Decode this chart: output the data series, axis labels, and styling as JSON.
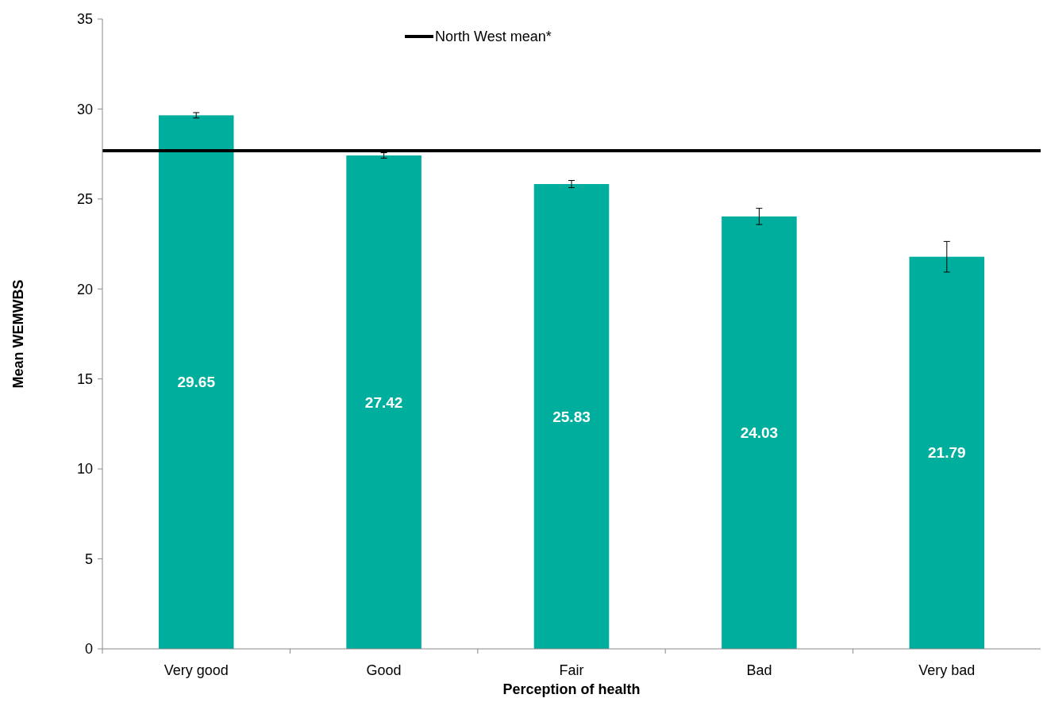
{
  "chart_data": {
    "type": "bar",
    "xlabel": "Perception of health",
    "ylabel": "Mean WEMWBS",
    "categories": [
      "Very good",
      "Good",
      "Fair",
      "Bad",
      "Very bad"
    ],
    "values": [
      29.65,
      27.42,
      25.83,
      24.03,
      21.79
    ],
    "color": "#00ae9e",
    "errors": [
      0.15,
      0.15,
      0.2,
      0.45,
      0.85
    ],
    "data_labels": true,
    "ylim": [
      0,
      35
    ],
    "yticks": [
      0,
      5,
      10,
      15,
      20,
      25,
      30,
      35
    ],
    "ref_lines": [
      {
        "axis": "y",
        "value": 27.68,
        "label": "North West mean*",
        "color": "#000000"
      }
    ],
    "legend": "top"
  }
}
